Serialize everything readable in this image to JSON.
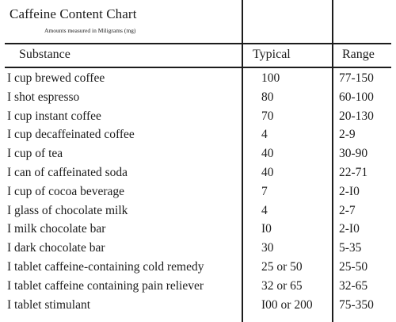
{
  "header": {
    "title": "Caffeine Content Chart",
    "subtitle": "Amounts measured in Miligrams (mg)"
  },
  "columns": {
    "substance": "Substance",
    "typical": "Typical",
    "range": "Range"
  },
  "rows": [
    {
      "substance": "I cup brewed coffee",
      "typical": "100",
      "range": "77-150"
    },
    {
      "substance": "I shot espresso",
      "typical": "80",
      "range": "60-100"
    },
    {
      "substance": "I cup instant coffee",
      "typical": "70",
      "range": "20-130"
    },
    {
      "substance": "I cup decaffeinated coffee",
      "typical": "4",
      "range": "2-9"
    },
    {
      "substance": "I cup of tea",
      "typical": "40",
      "range": "30-90"
    },
    {
      "substance": "I can of caffeinated soda",
      "typical": "40",
      "range": "22-71"
    },
    {
      "substance": "I cup of cocoa beverage",
      "typical": "7",
      "range": "2-I0"
    },
    {
      "substance": "I glass of chocolate milk",
      "typical": "4",
      "range": "2-7"
    },
    {
      "substance": "I milk chocolate bar",
      "typical": "I0",
      "range": "2-I0"
    },
    {
      "substance": "I dark chocolate bar",
      "typical": "30",
      "range": "5-35"
    },
    {
      "substance": "I tablet caffeine-containing cold remedy",
      "typical": "25 or 50",
      "range": "25-50"
    },
    {
      "substance": "I tablet caffeine containing pain reliever",
      "typical": "32 or 65",
      "range": "32-65"
    },
    {
      "substance": "I tablet stimulant",
      "typical": "I00 or 200",
      "range": "75-350"
    }
  ]
}
